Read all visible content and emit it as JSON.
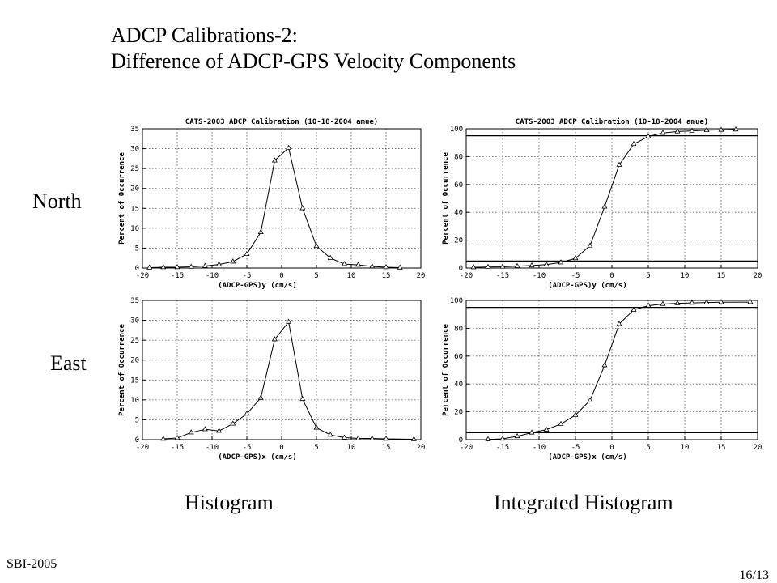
{
  "slide": {
    "title_line1": "ADCP Calibrations-2:",
    "title_line2": "Difference of ADCP-GPS Velocity Components",
    "row_north": "North",
    "row_east": "East",
    "caption_left": "Histogram",
    "caption_right": "Integrated Histogram",
    "footer_left": "SBI-2005",
    "footer_right": "16/13"
  },
  "chart_data": [
    {
      "type": "line",
      "title": "CATS-2003 ADCP Calibration (10-18-2004 amue)",
      "xlabel": "(ADCP-GPS)y (cm/s)",
      "ylabel": "Percent of Occurrence",
      "xlim": [
        -20,
        20
      ],
      "ylim": [
        0,
        35
      ],
      "xticks": [
        -20,
        -15,
        -10,
        -5,
        0,
        5,
        10,
        15,
        20
      ],
      "yticks": [
        0,
        5,
        10,
        15,
        20,
        25,
        30,
        35
      ],
      "grid": true,
      "marker": "triangle",
      "x": [
        -19,
        -17,
        -15,
        -13,
        -11,
        -9,
        -7,
        -5,
        -3,
        -1,
        1,
        3,
        5,
        7,
        9,
        11,
        13,
        15,
        17
      ],
      "y": [
        0.1,
        0.2,
        0.2,
        0.3,
        0.5,
        0.9,
        1.6,
        3.5,
        9,
        27,
        30.2,
        15,
        5.5,
        2.5,
        1,
        0.8,
        0.4,
        0.2,
        0.1
      ],
      "hlines": []
    },
    {
      "type": "line",
      "title": "CATS-2003 ADCP Calibration (10-18-2004 amue)",
      "xlabel": "(ADCP-GPS)y (cm/s)",
      "ylabel": "Percent of Occurrence",
      "xlim": [
        -20,
        20
      ],
      "ylim": [
        0,
        100
      ],
      "xticks": [
        -20,
        -15,
        -10,
        -5,
        0,
        5,
        10,
        15,
        20
      ],
      "yticks": [
        0,
        20,
        40,
        60,
        80,
        100
      ],
      "grid": true,
      "marker": "triangle",
      "x": [
        -19,
        -17,
        -15,
        -13,
        -11,
        -9,
        -7,
        -5,
        -3,
        -1,
        1,
        3,
        5,
        7,
        9,
        11,
        13,
        15,
        17
      ],
      "y": [
        0.5,
        0.7,
        0.9,
        1.3,
        1.8,
        2.5,
        4,
        7,
        16,
        44,
        74,
        89,
        94.5,
        97,
        98,
        98.5,
        99,
        99.2,
        99.4
      ],
      "hlines": [
        5,
        95
      ]
    },
    {
      "type": "line",
      "title": "",
      "xlabel": "(ADCP-GPS)x (cm/s)",
      "ylabel": "Percent of Occurrence",
      "xlim": [
        -20,
        20
      ],
      "ylim": [
        0,
        35
      ],
      "xticks": [
        -20,
        -15,
        -10,
        -5,
        0,
        5,
        10,
        15,
        20
      ],
      "yticks": [
        0,
        5,
        10,
        15,
        20,
        25,
        30,
        35
      ],
      "grid": true,
      "marker": "triangle",
      "x": [
        -17,
        -15,
        -13,
        -11,
        -9,
        -7,
        -5,
        -3,
        -1,
        1,
        3,
        5,
        7,
        9,
        11,
        13,
        15,
        19
      ],
      "y": [
        0.2,
        0.4,
        1.8,
        2.6,
        2.2,
        4,
        6.5,
        10.5,
        25.2,
        29.6,
        10.2,
        3,
        1.2,
        0.5,
        0.3,
        0.3,
        0.2,
        0.1
      ],
      "hlines": []
    },
    {
      "type": "line",
      "title": "",
      "xlabel": "(ADCP-GPS)x (cm/s)",
      "ylabel": "Percent of Occurrence",
      "xlim": [
        -20,
        20
      ],
      "ylim": [
        0,
        100
      ],
      "xticks": [
        -20,
        -15,
        -10,
        -5,
        0,
        5,
        10,
        15,
        20
      ],
      "yticks": [
        0,
        20,
        40,
        60,
        80,
        100
      ],
      "grid": true,
      "marker": "triangle",
      "x": [
        -17,
        -15,
        -13,
        -11,
        -9,
        -7,
        -5,
        -3,
        -1,
        1,
        3,
        5,
        7,
        9,
        11,
        13,
        15,
        19
      ],
      "y": [
        0.2,
        0.6,
        2.4,
        5,
        7.2,
        11.2,
        17.7,
        28.2,
        53.4,
        83,
        93.2,
        96.2,
        97.4,
        97.9,
        98.2,
        98.5,
        98.7,
        98.8
      ],
      "hlines": [
        5,
        95
      ]
    }
  ]
}
